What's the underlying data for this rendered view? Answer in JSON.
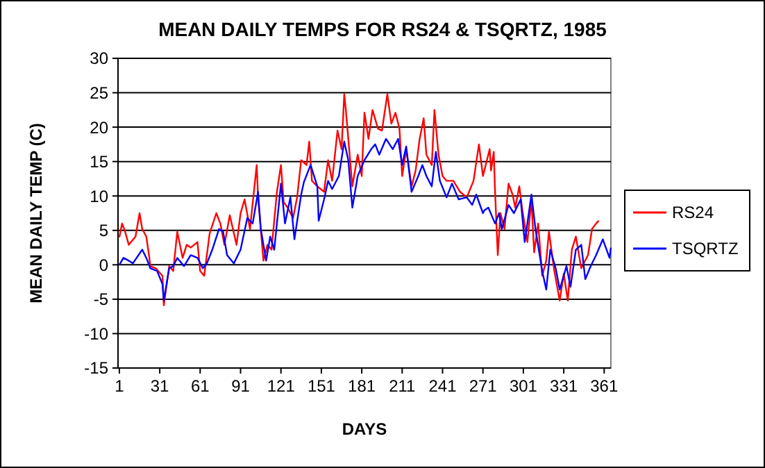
{
  "chart_data": {
    "type": "line",
    "title": "MEAN DAILY TEMPS FOR RS24 & TSQRTZ, 1985",
    "xlabel": "DAYS",
    "ylabel": "MEAN DAILY TEMP (C)",
    "xlim": [
      0,
      366
    ],
    "xticks": [
      1,
      31,
      61,
      91,
      121,
      151,
      181,
      211,
      241,
      271,
      301,
      331,
      361
    ],
    "ylim": [
      -15,
      30
    ],
    "yticks": [
      -15,
      -10,
      -5,
      0,
      5,
      10,
      15,
      20,
      25,
      30
    ],
    "grid": "y",
    "legend": "right",
    "line_style": "solid",
    "marker": "none",
    "series": [
      {
        "name": "RS24",
        "color": "#ff0000",
        "x": [
          1,
          3,
          5,
          8,
          13,
          16,
          18,
          21,
          23,
          24,
          28,
          33,
          34,
          38,
          41,
          44,
          48,
          51,
          54,
          59,
          61,
          64,
          68,
          73,
          76,
          79,
          83,
          88,
          91,
          94,
          98,
          103,
          104,
          108,
          111,
          114,
          118,
          121,
          123,
          126,
          130,
          133,
          136,
          140,
          142,
          144,
          148,
          153,
          156,
          159,
          163,
          166,
          168,
          169,
          171,
          174,
          178,
          181,
          183,
          186,
          189,
          193,
          196,
          200,
          203,
          206,
          209,
          211,
          214,
          218,
          221,
          224,
          227,
          229,
          233,
          235,
          238,
          241,
          244,
          249,
          254,
          259,
          264,
          268,
          271,
          276,
          277,
          279,
          280,
          282,
          284,
          287,
          290,
          293,
          295,
          298,
          300,
          304,
          307,
          309,
          312,
          315,
          318,
          320,
          324,
          328,
          331,
          334,
          337,
          340,
          344,
          349,
          352,
          355,
          357
        ],
        "values": [
          4,
          6,
          5,
          2.9,
          4.1,
          7.5,
          5.2,
          4.1,
          1.4,
          -0.2,
          -0.5,
          -1.6,
          -5.9,
          -0.2,
          -0.9,
          4.8,
          1,
          2.9,
          2.5,
          3.3,
          -0.9,
          -1.6,
          4.5,
          7.5,
          6,
          2.9,
          7.2,
          2.9,
          7.5,
          9.5,
          5.2,
          14.5,
          9.8,
          0.6,
          2.9,
          2.2,
          10.6,
          14.5,
          9.1,
          8.3,
          6.8,
          9.8,
          15.2,
          14.5,
          17.9,
          12.2,
          11.4,
          10.6,
          15.2,
          12.2,
          19.5,
          16.8,
          24.8,
          22.9,
          18.3,
          11.4,
          16,
          12.9,
          22.1,
          18.3,
          22.5,
          19.8,
          19.5,
          24.8,
          20.5,
          22.1,
          19.8,
          12.9,
          16.8,
          11.4,
          13.7,
          18.3,
          21.3,
          16,
          14.5,
          22.5,
          16,
          12.9,
          12.2,
          12.2,
          10.6,
          9.8,
          12.2,
          17.5,
          12.9,
          16.8,
          13.7,
          16.4,
          10.6,
          1.4,
          7.5,
          5.2,
          11.8,
          10.2,
          8.3,
          11.4,
          8.3,
          3.3,
          9.5,
          1.8,
          6,
          -1.6,
          0.6,
          4.8,
          -0.9,
          -5.2,
          -1.3,
          -5.2,
          2.2,
          4.1,
          -0.5,
          1.4,
          5.2,
          6,
          6.4
        ]
      },
      {
        "name": "TSQRTZ",
        "color": "#0000ff",
        "x": [
          1,
          4,
          8,
          11,
          18,
          21,
          24,
          29,
          33,
          34,
          38,
          41,
          44,
          49,
          54,
          59,
          63,
          66,
          70,
          75,
          78,
          81,
          86,
          91,
          96,
          100,
          104,
          106,
          110,
          113,
          116,
          120,
          121,
          124,
          128,
          131,
          136,
          138,
          143,
          148,
          149,
          153,
          156,
          159,
          164,
          168,
          171,
          174,
          178,
          183,
          188,
          191,
          194,
          199,
          204,
          208,
          211,
          214,
          218,
          223,
          226,
          229,
          233,
          236,
          239,
          244,
          248,
          253,
          259,
          263,
          266,
          271,
          272,
          275,
          280,
          283,
          285,
          290,
          294,
          299,
          302,
          307,
          310,
          315,
          318,
          321,
          325,
          328,
          333,
          336,
          340,
          344,
          347,
          351,
          355,
          360,
          365,
          366
        ],
        "values": [
          0,
          1,
          0.6,
          0.2,
          2.2,
          1,
          -0.5,
          -0.9,
          -2.8,
          -5.2,
          -0.5,
          -0.2,
          1,
          -0.2,
          1.4,
          1,
          -0.5,
          0.2,
          2.2,
          5.2,
          4.8,
          1.4,
          0.2,
          2.2,
          6.8,
          6,
          10.6,
          5.2,
          0.6,
          4.1,
          2.2,
          9.8,
          11.8,
          6,
          9.8,
          3.7,
          10.2,
          12,
          14.5,
          11.4,
          6.4,
          9.5,
          12.2,
          11,
          12.9,
          17.9,
          15.2,
          8.3,
          12.9,
          15.2,
          16.8,
          17.5,
          16,
          18.3,
          16.8,
          18.3,
          14.5,
          17.2,
          10.6,
          12.9,
          14.5,
          12.9,
          11.4,
          16.4,
          12.2,
          9.8,
          11.8,
          9.5,
          9.8,
          8.7,
          10.2,
          7.5,
          7.9,
          8.3,
          6,
          7.5,
          5.2,
          8.7,
          7.5,
          9.5,
          3.3,
          10.2,
          5.2,
          -0.9,
          -3.6,
          2.2,
          -0.5,
          -3.6,
          -0.2,
          -3.2,
          2.2,
          2.9,
          -2.1,
          -0.2,
          1.4,
          3.7,
          1,
          2.5
        ]
      }
    ]
  }
}
